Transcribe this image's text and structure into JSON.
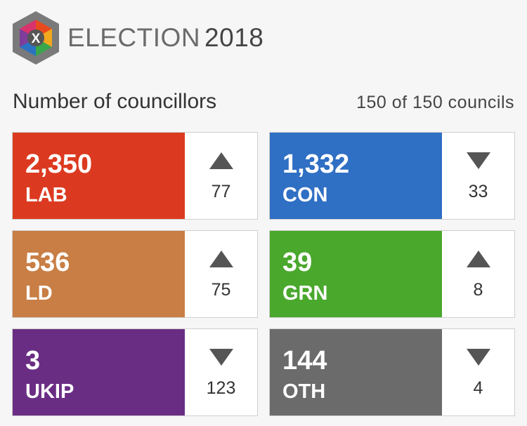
{
  "header": {
    "brand": "ELECTION",
    "year": "2018",
    "logo_letter": "X"
  },
  "subhead": {
    "title": "Number of councillors",
    "councils": "150 of 150 councils"
  },
  "parties": [
    {
      "count": "2,350",
      "name": "LAB",
      "color": "#dc3a20",
      "direction": "up",
      "change": "77"
    },
    {
      "count": "1,332",
      "name": "CON",
      "color": "#2f6fc4",
      "direction": "down",
      "change": "33"
    },
    {
      "count": "536",
      "name": "LD",
      "color": "#c97e45",
      "direction": "up",
      "change": "75"
    },
    {
      "count": "39",
      "name": "GRN",
      "color": "#4aa82d",
      "direction": "up",
      "change": "8"
    },
    {
      "count": "3",
      "name": "UKIP",
      "color": "#6a2d84",
      "direction": "down",
      "change": "123"
    },
    {
      "count": "144",
      "name": "OTH",
      "color": "#6b6b6b",
      "direction": "down",
      "change": "4"
    }
  ]
}
